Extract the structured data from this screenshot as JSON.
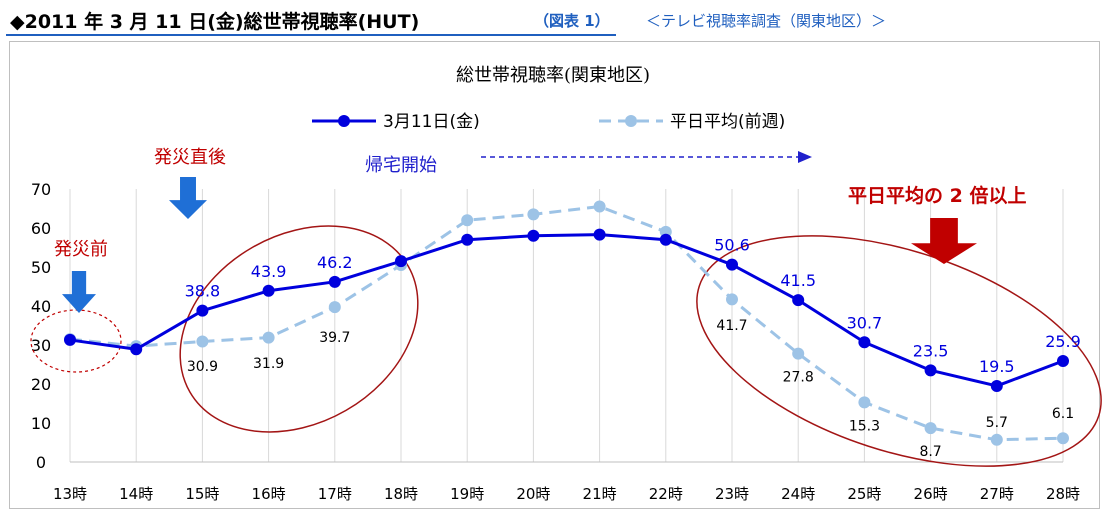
{
  "header": {
    "title": "◆2011 年 3 月 11 日(金)総世帯視聴率(HUT)",
    "figure_ref": "（図表 1）",
    "survey": "＜テレビ視聴率調査（関東地区）＞"
  },
  "chart_data": {
    "type": "line",
    "title": "総世帯視聴率(関東地区)",
    "categories": [
      "13時",
      "14時",
      "15時",
      "16時",
      "17時",
      "18時",
      "19時",
      "20時",
      "21時",
      "22時",
      "23時",
      "24時",
      "25時",
      "26時",
      "27時",
      "28時"
    ],
    "ylim": [
      0,
      70
    ],
    "yticks": [
      "0",
      "10",
      "20",
      "30",
      "40",
      "50",
      "60",
      "70"
    ],
    "grid": "vertical",
    "legend": "top",
    "series": [
      {
        "name": "3月11日(金)",
        "color": "#0000dd",
        "style": "solid",
        "values": [
          31.3,
          28.9,
          38.8,
          43.9,
          46.2,
          51.5,
          57.0,
          58.0,
          58.3,
          57.0,
          50.6,
          41.5,
          30.7,
          23.5,
          19.5,
          25.9
        ],
        "data_labels": [
          null,
          null,
          "38.8",
          "43.9",
          "46.2",
          null,
          null,
          null,
          null,
          null,
          "50.6",
          "41.5",
          "30.7",
          "23.5",
          "19.5",
          "25.9"
        ]
      },
      {
        "name": "平日平均(前週)",
        "color": "#9dc3e6",
        "style": "dashed",
        "values": [
          31.5,
          29.7,
          30.9,
          31.9,
          39.7,
          50.5,
          62.0,
          63.5,
          65.5,
          59.0,
          41.7,
          27.8,
          15.3,
          8.7,
          5.7,
          6.1
        ],
        "data_labels": [
          null,
          null,
          "30.9",
          "31.9",
          "39.7",
          null,
          null,
          null,
          null,
          null,
          "41.7",
          "27.8",
          "15.3",
          "8.7",
          "5.7",
          "6.1"
        ]
      }
    ],
    "annotations": {
      "before": "発災前",
      "just_after": "発災直後",
      "going_home": "帰宅開始",
      "double": "平日平均の 2 倍以上"
    },
    "annotation_colors": {
      "red": "#c00000",
      "blue": "#1f5fbf",
      "arrow": "#1f6fd6"
    }
  }
}
